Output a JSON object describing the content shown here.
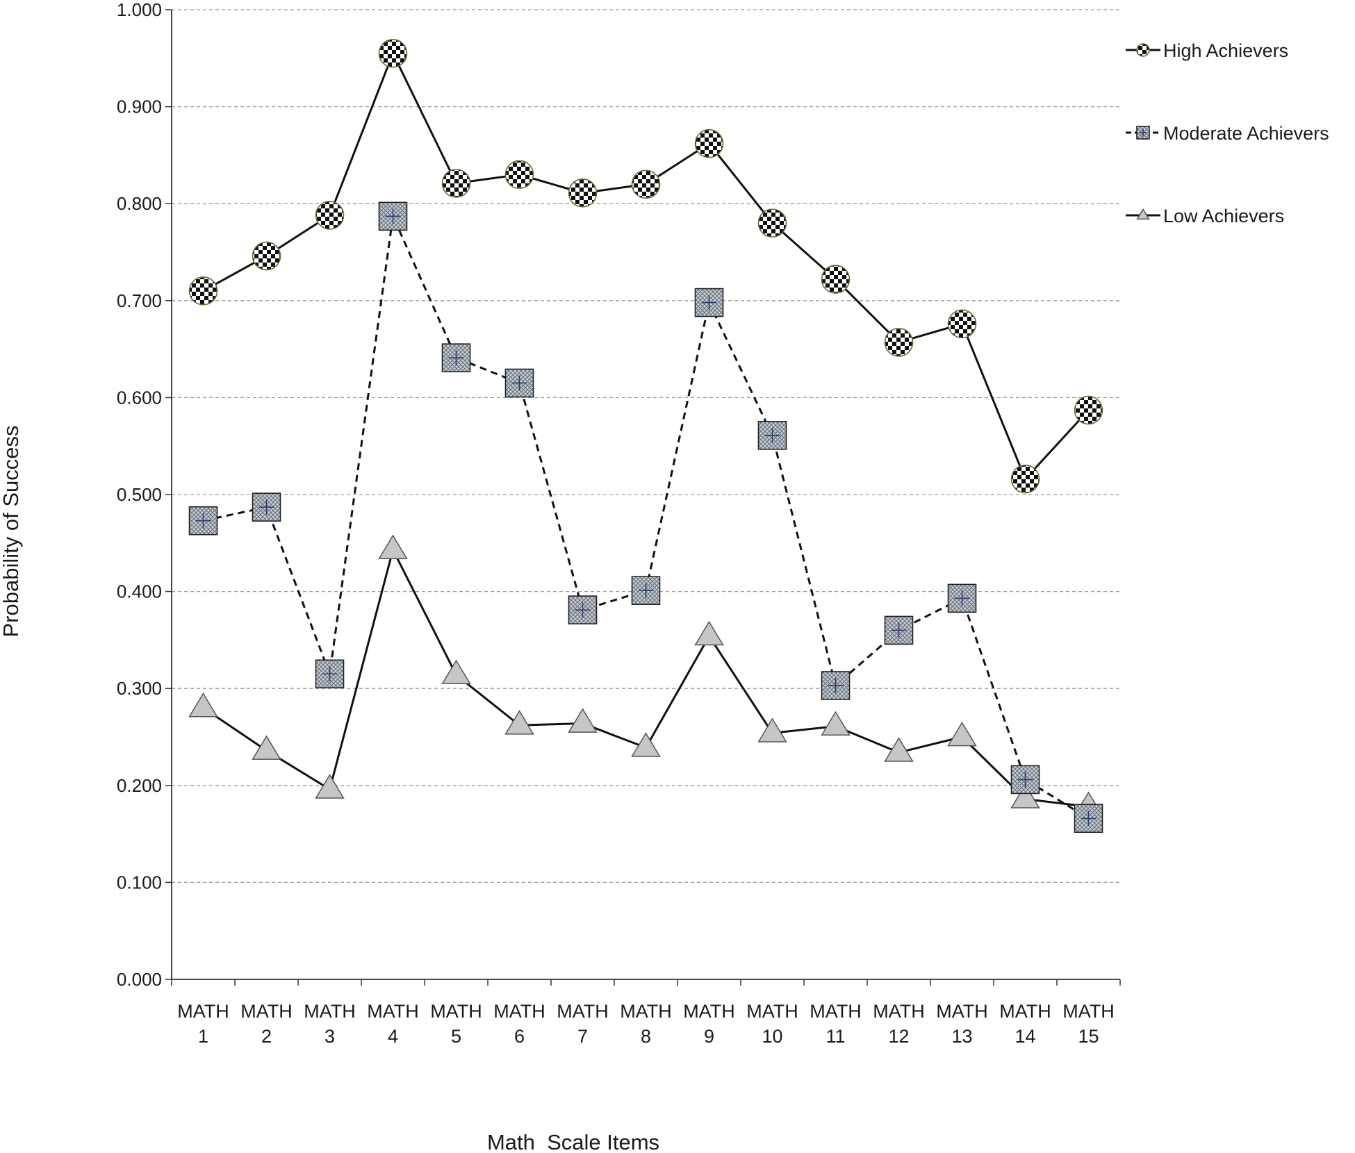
{
  "chart_data": {
    "type": "line",
    "title": "",
    "xlabel": "Math  Scale Items",
    "ylabel": "Probability of Success",
    "ylim": [
      0,
      1
    ],
    "yticks": [
      "0.000",
      "0.100",
      "0.200",
      "0.300",
      "0.400",
      "0.500",
      "0.600",
      "0.700",
      "0.800",
      "0.900",
      "1.000"
    ],
    "grid": true,
    "legend_position": "right",
    "categories": [
      [
        "MATH",
        "1"
      ],
      [
        "MATH",
        "2"
      ],
      [
        "MATH",
        "3"
      ],
      [
        "MATH",
        "4"
      ],
      [
        "MATH",
        "5"
      ],
      [
        "MATH",
        "6"
      ],
      [
        "MATH",
        "7"
      ],
      [
        "MATH",
        "8"
      ],
      [
        "MATH",
        "9"
      ],
      [
        "MATH",
        "10"
      ],
      [
        "MATH",
        "11"
      ],
      [
        "MATH",
        "12"
      ],
      [
        "MATH",
        "13"
      ],
      [
        "MATH",
        "14"
      ],
      [
        "MATH",
        "15"
      ]
    ],
    "series": [
      {
        "name": "High Achievers",
        "marker": "checkered-circle",
        "line": "solid",
        "values": [
          0.71,
          0.746,
          0.788,
          0.955,
          0.821,
          0.83,
          0.811,
          0.82,
          0.862,
          0.78,
          0.722,
          0.657,
          0.676,
          0.516,
          0.587
        ]
      },
      {
        "name": "Moderate Achievers",
        "marker": "hatched-square",
        "line": "dashed",
        "values": [
          0.473,
          0.487,
          0.315,
          0.787,
          0.641,
          0.615,
          0.381,
          0.401,
          0.698,
          0.561,
          0.303,
          0.36,
          0.393,
          0.206,
          0.166
        ]
      },
      {
        "name": "Low Achievers",
        "marker": "triangle",
        "line": "solid",
        "values": [
          0.28,
          0.236,
          0.196,
          0.443,
          0.314,
          0.262,
          0.264,
          0.239,
          0.354,
          0.254,
          0.261,
          0.234,
          0.25,
          0.186,
          0.178
        ]
      }
    ]
  },
  "colors": {
    "line": "#111111",
    "grid": "#9a9a9a",
    "triangle_fill": "#c6c6c6",
    "square_fill": "#9aa3ad",
    "circle_dark": "#111111",
    "circle_light": "#ffffff"
  }
}
